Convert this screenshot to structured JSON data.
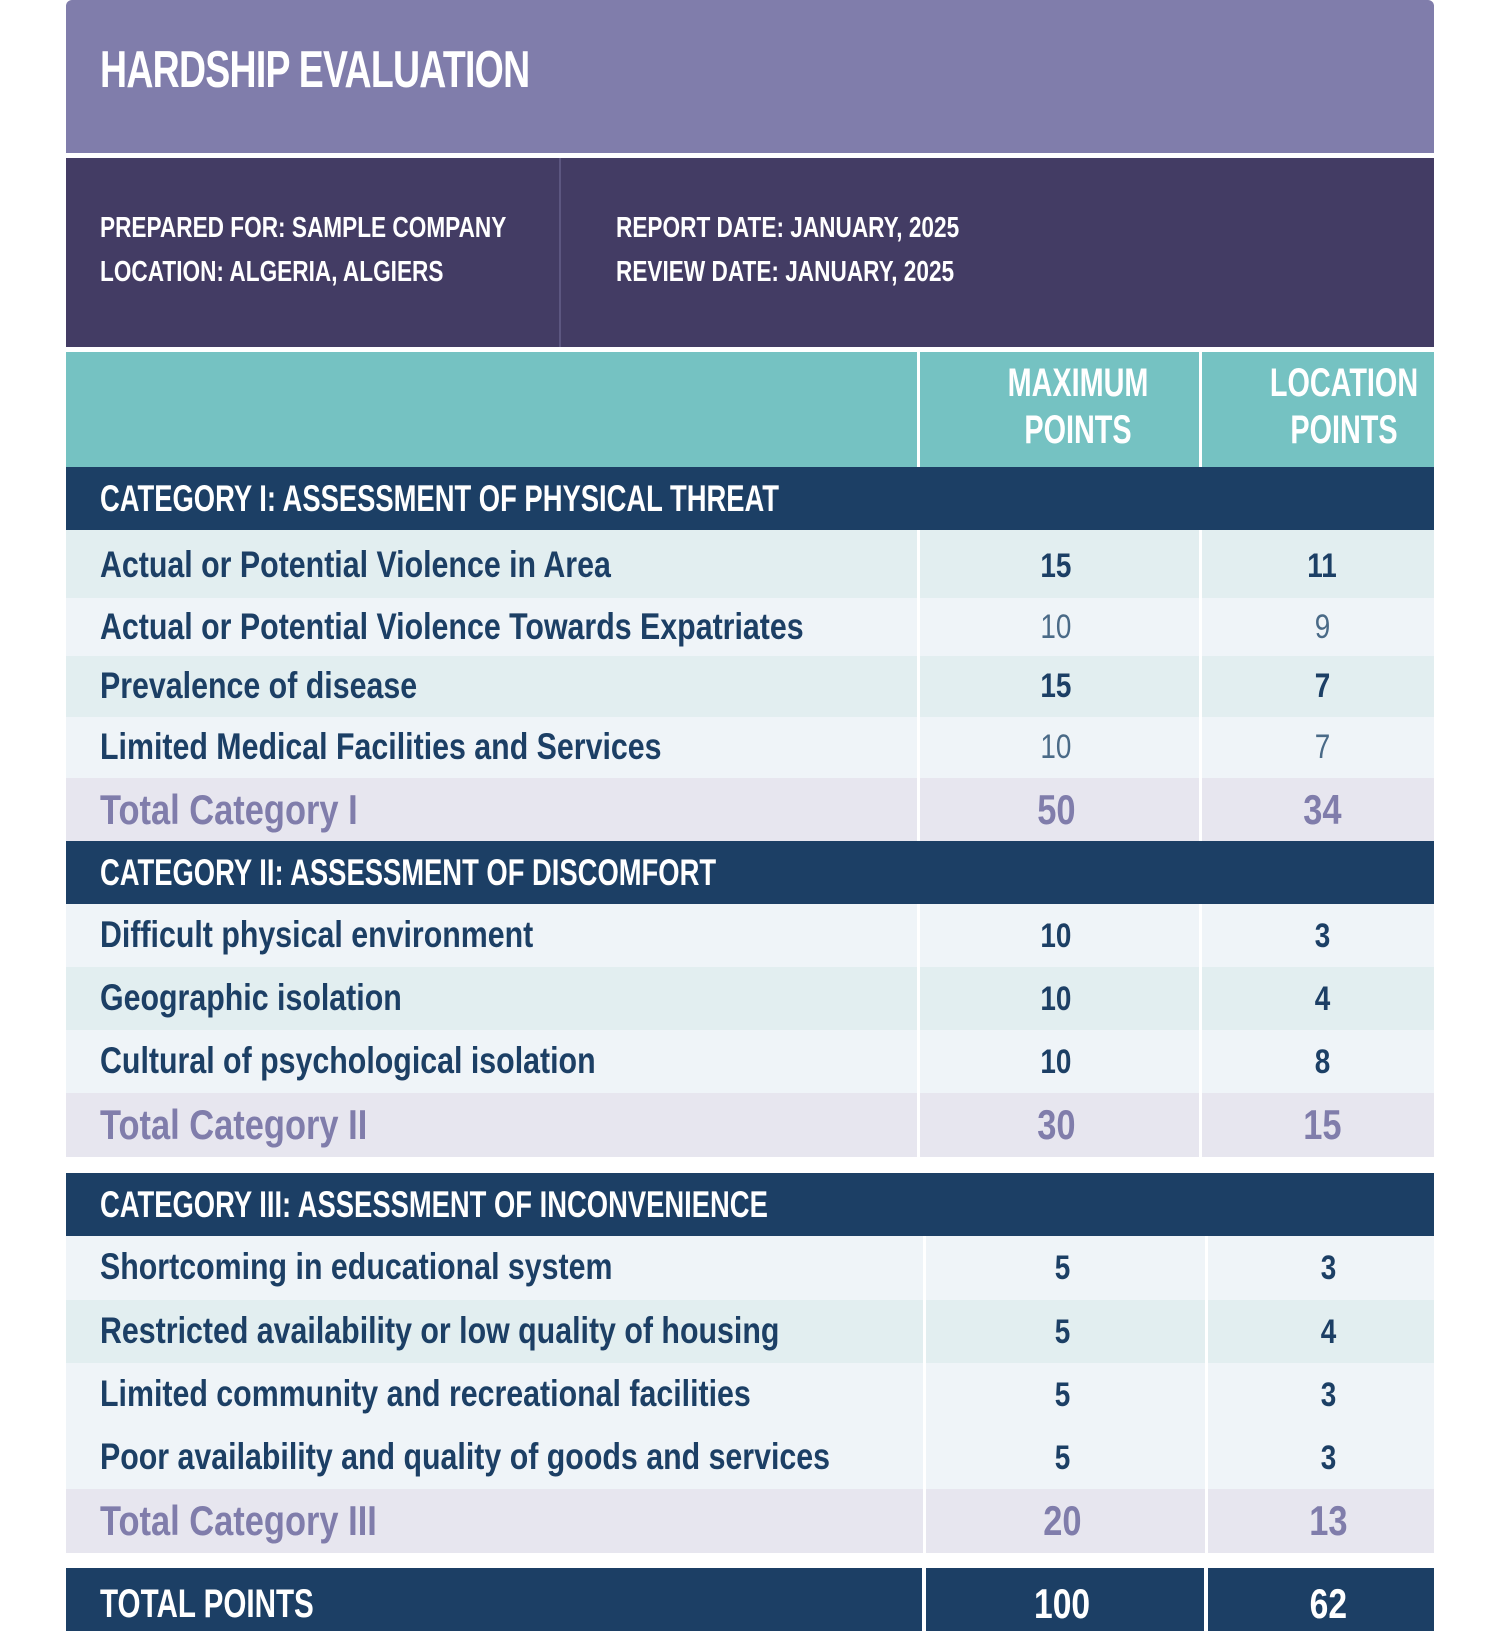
{
  "title": "HARDSHIP EVALUATION",
  "meta": {
    "prepared_for": "PREPARED FOR: SAMPLE COMPANY",
    "location": "LOCATION: ALGERIA, ALGIERS",
    "report_date": "REPORT DATE: JANUARY, 2025",
    "review_date": "REVIEW DATE: JANUARY, 2025"
  },
  "columns": {
    "max_line1": "MAXIMUM",
    "max_line2": "POINTS",
    "loc_line1": "LOCATION",
    "loc_line2": "POINTS"
  },
  "categories": [
    {
      "heading": "CATEGORY I: ASSESSMENT OF PHYSICAL THREAT",
      "items": [
        {
          "name": "Actual or Potential Violence in Area",
          "max": "15",
          "loc": "11"
        },
        {
          "name": "Actual or Potential Violence Towards Expatriates",
          "max": "10",
          "loc": "9"
        },
        {
          "name": "Prevalence of disease",
          "max": "15",
          "loc": "7"
        },
        {
          "name": "Limited Medical Facilities and Services",
          "max": "10",
          "loc": "7"
        }
      ],
      "total": {
        "name": "Total Category I",
        "max": "50",
        "loc": "34"
      }
    },
    {
      "heading": "CATEGORY II: ASSESSMENT OF DISCOMFORT",
      "items": [
        {
          "name": "Difficult physical environment",
          "max": "10",
          "loc": "3"
        },
        {
          "name": "Geographic isolation",
          "max": "10",
          "loc": "4"
        },
        {
          "name": "Cultural of psychological isolation",
          "max": "10",
          "loc": "8"
        }
      ],
      "total": {
        "name": "Total Category II",
        "max": "30",
        "loc": "15"
      }
    },
    {
      "heading": "CATEGORY III: ASSESSMENT OF INCONVENIENCE",
      "items": [
        {
          "name": "Shortcoming in educational system",
          "max": "5",
          "loc": "3"
        },
        {
          "name": "Restricted availability or low quality of housing",
          "max": "5",
          "loc": "4"
        },
        {
          "name": "Limited community and recreational facilities",
          "max": "5",
          "loc": "3"
        },
        {
          "name": "Poor availability and quality of goods and services",
          "max": "5",
          "loc": "3"
        }
      ],
      "total": {
        "name": "Total Category III",
        "max": "20",
        "loc": "13"
      }
    }
  ],
  "grand_total": {
    "label": "TOTAL POINTS",
    "max": "100",
    "loc": "62"
  },
  "colors": {
    "title_band": "#807dab",
    "meta_band": "#433c64",
    "header_teal": "#75c2c2",
    "category_navy": "#1c3f65",
    "total_text": "#807dab"
  }
}
